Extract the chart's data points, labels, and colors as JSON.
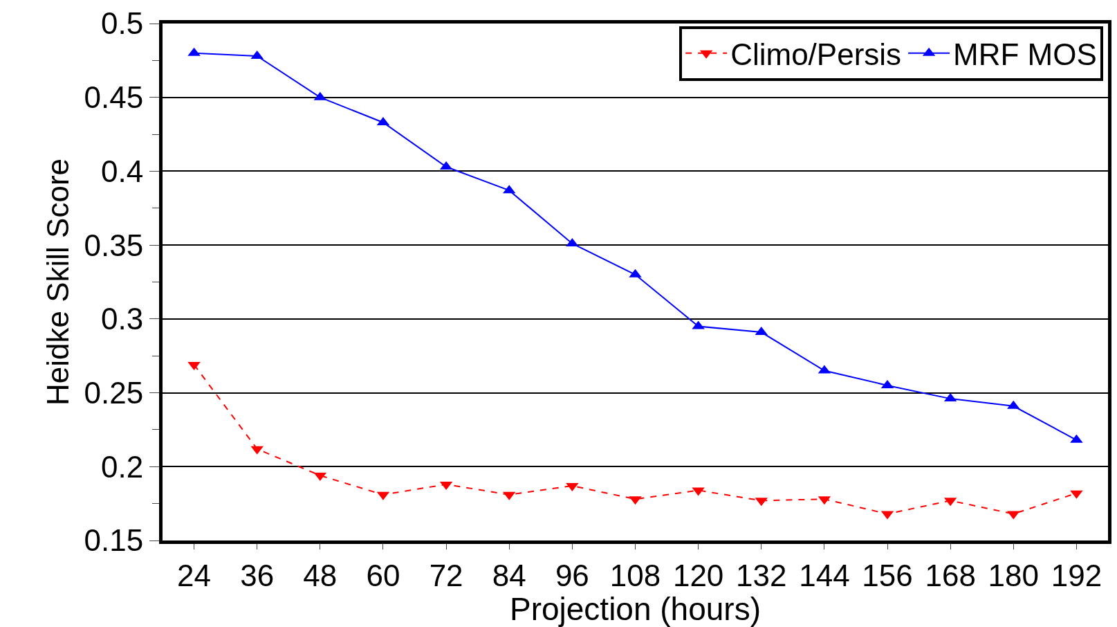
{
  "chart_data": {
    "type": "line",
    "xlabel": "Projection (hours)",
    "ylabel": "Heidke Skill Score",
    "categories": [
      "24",
      "36",
      "48",
      "60",
      "72",
      "84",
      "96",
      "108",
      "120",
      "132",
      "144",
      "156",
      "168",
      "180",
      "192"
    ],
    "series": [
      {
        "name": "Climo/Persis",
        "color": "#ff0000",
        "line_style": "dashed",
        "marker": "triangle-down",
        "values": [
          0.269,
          0.212,
          0.194,
          0.181,
          0.188,
          0.181,
          0.187,
          0.178,
          0.184,
          0.177,
          0.178,
          0.168,
          0.177,
          0.168,
          0.182
        ]
      },
      {
        "name": "MRF MOS",
        "color": "#0000ff",
        "line_style": "solid",
        "marker": "triangle",
        "values": [
          0.48,
          0.478,
          0.45,
          0.433,
          0.403,
          0.387,
          0.351,
          0.33,
          0.295,
          0.291,
          0.265,
          0.255,
          0.246,
          0.241,
          0.218
        ]
      }
    ],
    "ylim": [
      0.15,
      0.5
    ],
    "yticks": [
      0.15,
      0.2,
      0.25,
      0.3,
      0.35,
      0.4,
      0.45,
      0.5
    ],
    "grid": "y",
    "legend": "top right"
  }
}
